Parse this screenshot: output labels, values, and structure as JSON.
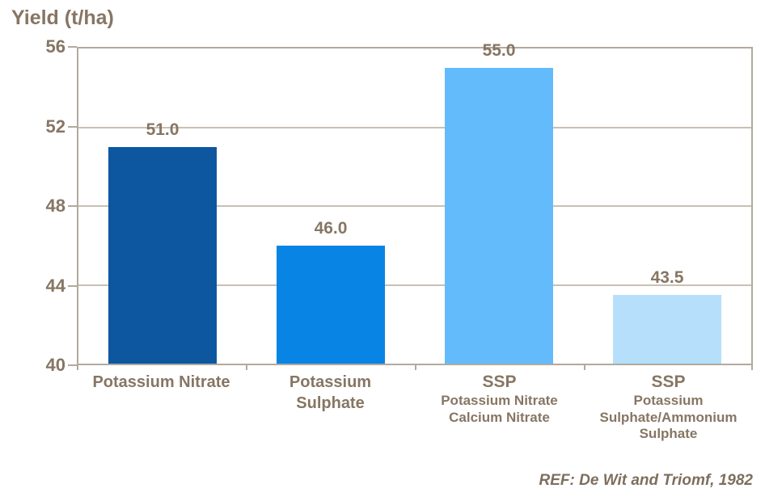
{
  "chart_data": {
    "type": "bar",
    "title": "Yield (t/ha)",
    "xlabel": "",
    "ylabel": "Yield (t/ha)",
    "ylim": [
      40,
      56
    ],
    "yticks": [
      40,
      44,
      48,
      52,
      56
    ],
    "grid": "horizontal",
    "legend_position": "none",
    "categories": [
      {
        "title_lines": [
          "Potassium Nitrate"
        ],
        "sub_lines": []
      },
      {
        "title_lines": [
          "Potassium",
          "Sulphate"
        ],
        "sub_lines": []
      },
      {
        "title_lines": [
          "SSP"
        ],
        "sub_lines": [
          "Potassium Nitrate",
          "Calcium Nitrate"
        ]
      },
      {
        "title_lines": [
          "SSP"
        ],
        "sub_lines": [
          "Potassium",
          "Sulphate/Ammonium",
          "Sulphate"
        ]
      }
    ],
    "values": [
      51.0,
      46.0,
      55.0,
      43.5
    ],
    "value_labels": [
      "51.0",
      "46.0",
      "55.0",
      "43.5"
    ],
    "bar_colors": [
      "#0d57a0",
      "#0884e4",
      "#64bbfb",
      "#b5dffb"
    ],
    "footer": "REF: De Wit and Triomf, 1982",
    "colors": {
      "text": "#867663",
      "frame": "#b3a99c",
      "gridline": "#c9c0b3",
      "background": "#ffffff"
    }
  }
}
